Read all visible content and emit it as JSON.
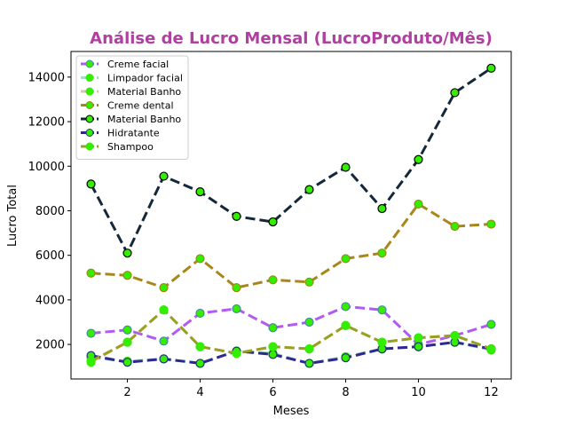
{
  "chart_data": {
    "type": "line",
    "title": "Análise de Lucro Mensal (LucroProduto/Mês)",
    "title_color": "#b040a0",
    "xlabel": "Meses",
    "ylabel": "Lucro Total",
    "x": [
      1,
      2,
      3,
      4,
      5,
      6,
      7,
      8,
      9,
      10,
      11,
      12
    ],
    "xlim": [
      0.45,
      12.55
    ],
    "ylim": [
      450,
      15150
    ],
    "xticks": [
      2,
      4,
      6,
      8,
      10,
      12
    ],
    "yticks": [
      2000,
      4000,
      6000,
      8000,
      10000,
      12000,
      14000
    ],
    "grid": false,
    "legend_position": "top-left",
    "marker_face": "#33ee00",
    "series": [
      {
        "name": "Creme facial",
        "color": "#b05cf0",
        "dash": true,
        "marker_edge": "#4488aa",
        "values": [
          2500,
          2650,
          2150,
          3400,
          3600,
          2750,
          3000,
          3700,
          3550,
          2000,
          2400,
          2900
        ]
      },
      {
        "name": "Limpador facial",
        "color": "#a0e0c0",
        "dash": true,
        "marker_edge": "#33ee00",
        "values": [
          1400,
          1250,
          1350,
          1150,
          1700,
          1600,
          1150,
          1450,
          1800,
          1900,
          2100,
          1750
        ]
      },
      {
        "name": "Material Banho",
        "color": "#e0c0a8",
        "dash": true,
        "marker_edge": "#33ee00",
        "values": [
          1200,
          2100,
          3550,
          1900,
          1600,
          1900,
          1800,
          2850,
          2100,
          2300,
          2400,
          1800
        ]
      },
      {
        "name": "Creme dental",
        "color": "#a8861a",
        "dash": true,
        "marker_edge": "#9a8a10",
        "values": [
          5200,
          5100,
          4550,
          5850,
          4550,
          4900,
          4800,
          5850,
          6100,
          8300,
          7300,
          7400
        ]
      },
      {
        "name": "Material Banho",
        "color": "#14283a",
        "dash": true,
        "marker_edge": "#000000",
        "values": [
          9200,
          6100,
          9550,
          8850,
          7750,
          7500,
          8950,
          9950,
          8100,
          10300,
          13300,
          14400
        ]
      },
      {
        "name": "Hidratante",
        "color": "#2e2890",
        "dash": true,
        "marker_edge": "#22337a",
        "values": [
          1500,
          1200,
          1350,
          1150,
          1700,
          1550,
          1150,
          1400,
          1800,
          1900,
          2100,
          1800
        ]
      },
      {
        "name": "Shampoo",
        "color": "#98a020",
        "dash": true,
        "marker_edge": "#33ee00",
        "values": [
          1250,
          2100,
          3550,
          1900,
          1600,
          1900,
          1800,
          2850,
          2100,
          2300,
          2400,
          1800
        ]
      }
    ]
  }
}
